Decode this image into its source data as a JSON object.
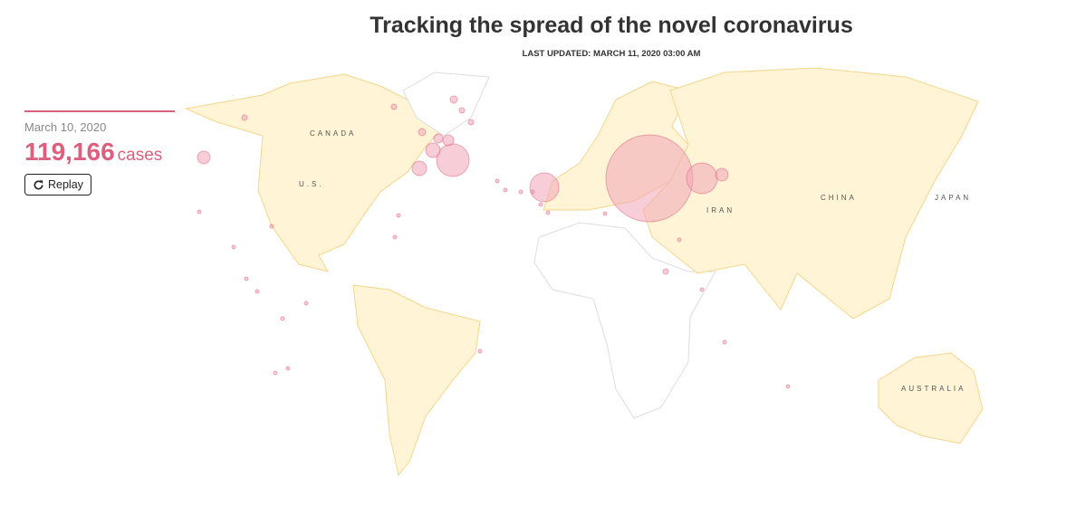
{
  "header": {
    "title": "Tracking the spread of the novel coronavirus",
    "last_updated": "LAST UPDATED: MARCH 11, 2020 03:00 AM"
  },
  "panel": {
    "date": "March 10, 2020",
    "count": "119,166",
    "unit": "cases",
    "replay_label": "Replay"
  },
  "map": {
    "labels": {
      "canada": "CANADA",
      "us": "U.S.",
      "china": "CHINA",
      "japan": "JAPAN",
      "iran": "IRAN",
      "australia": "AUSTRALIA"
    },
    "colors": {
      "affected_land": "#fff4d6",
      "affected_border": "#f7d58a",
      "unaffected_land": "#ffffff",
      "unaffected_border": "#dddddd",
      "bubble_fill": "#f0a5b8",
      "bubble_stroke": "#dd5f7e",
      "accent": "#dd5f7e"
    }
  }
}
